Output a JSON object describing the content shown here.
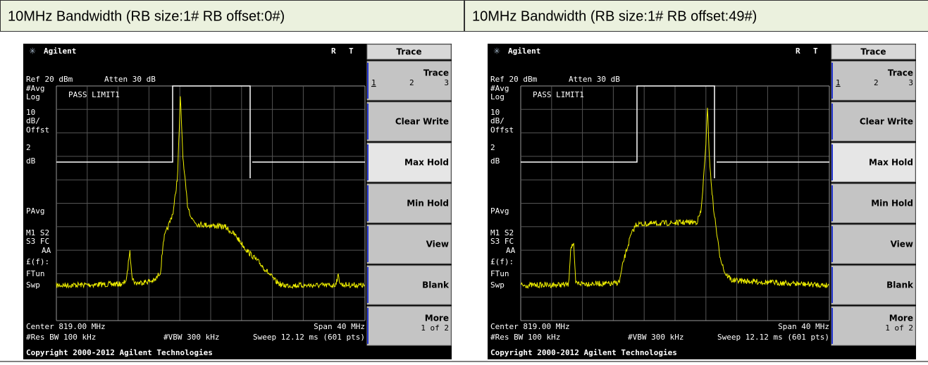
{
  "panels": [
    {
      "header": "10MHz Bandwidth (RB size:1# RB offset:0#)",
      "screen": {
        "brand": "Agilent",
        "status": [
          "R",
          "T"
        ],
        "ref": "Ref 20 dBm",
        "atten": "Atten 30 dB",
        "side_labels": [
          "#Avg",
          "Log",
          "10",
          "dB/",
          "Offst",
          "2",
          "dB",
          "PAvg",
          "M1  S2",
          "S3  FC",
          "AA",
          "£(f):",
          "FTun",
          "Swp"
        ],
        "pass": "PASS LIMIT1",
        "center": "Center 819.00 MHz",
        "span": "Span 40 MHz",
        "rbw": "#Res BW 100 kHz",
        "vbw": "#VBW 300 kHz",
        "sweep": "Sweep 12.12 ms (601 pts)",
        "menu_title": "Trace",
        "softkeys": [
          {
            "label": "Trace",
            "sub": [
              "1",
              "2",
              "3"
            ]
          },
          {
            "label": "Clear Write"
          },
          {
            "label": "Max Hold"
          },
          {
            "label": "Min Hold"
          },
          {
            "label": "View"
          },
          {
            "label": "Blank"
          },
          {
            "label": "More",
            "sub": [
              "1 of 2"
            ]
          }
        ],
        "copyright": "Copyright 2000-2012 Agilent Technologies"
      }
    },
    {
      "header": "10MHz Bandwidth (RB size:1# RB offset:49#)",
      "screen": {
        "brand": "Agilent",
        "status": [
          "R",
          "T"
        ],
        "ref": "Ref 20 dBm",
        "atten": "Atten 30 dB",
        "side_labels": [
          "#Avg",
          "Log",
          "10",
          "dB/",
          "Offst",
          "2",
          "dB",
          "PAvg",
          "M1  S2",
          "S3  FC",
          "AA",
          "£(f):",
          "FTun",
          "Swp"
        ],
        "pass": "PASS LIMIT1",
        "center": "Center 819.00 MHz",
        "span": "Span 40 MHz",
        "rbw": "#Res BW 100 kHz",
        "vbw": "#VBW 300 kHz",
        "sweep": "Sweep 12.12 ms (601 pts)",
        "menu_title": "Trace",
        "softkeys": [
          {
            "label": "Trace",
            "sub": [
              "1",
              "2",
              "3"
            ]
          },
          {
            "label": "Clear Write"
          },
          {
            "label": "Max Hold"
          },
          {
            "label": "Min Hold"
          },
          {
            "label": "View"
          },
          {
            "label": "Blank"
          },
          {
            "label": "More",
            "sub": [
              "1 of 2"
            ]
          }
        ],
        "copyright": "Copyright 2000-2012 Agilent Technologies"
      }
    }
  ]
}
